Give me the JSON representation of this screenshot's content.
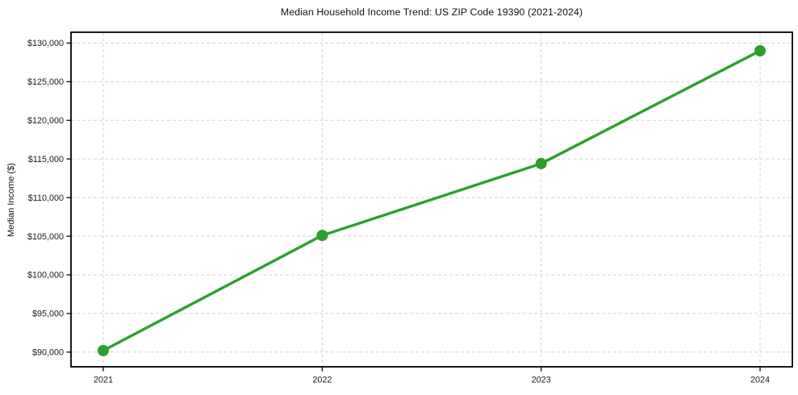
{
  "chart_data": {
    "type": "line",
    "title": "Median Household Income Trend: US ZIP Code 19390 (2021-2024)",
    "xlabel": "",
    "ylabel": "Median Income ($)",
    "categories": [
      "2021",
      "2022",
      "2023",
      "2024"
    ],
    "series": [
      {
        "values": [
          90200,
          105100,
          114400,
          129000
        ],
        "color": "#2ca02c",
        "marker": "circle-filled"
      }
    ],
    "y_ticks": [
      90000,
      95000,
      100000,
      105000,
      110000,
      115000,
      120000,
      125000,
      130000
    ],
    "y_tick_labels": [
      "$90,000",
      "$95,000",
      "$100,000",
      "$105,000",
      "$110,000",
      "$115,000",
      "$120,000",
      "$125,000",
      "$130,000"
    ],
    "x_tick_labels": [
      "2021",
      "2022",
      "2023",
      "2024"
    ],
    "ylim": [
      88100,
      131400
    ],
    "grid": true,
    "grid_style": "dashed",
    "grid_color": "#d4d4d4",
    "axis_frame_color": "#000000",
    "tick_color": "#000000",
    "legend_position": "none"
  }
}
